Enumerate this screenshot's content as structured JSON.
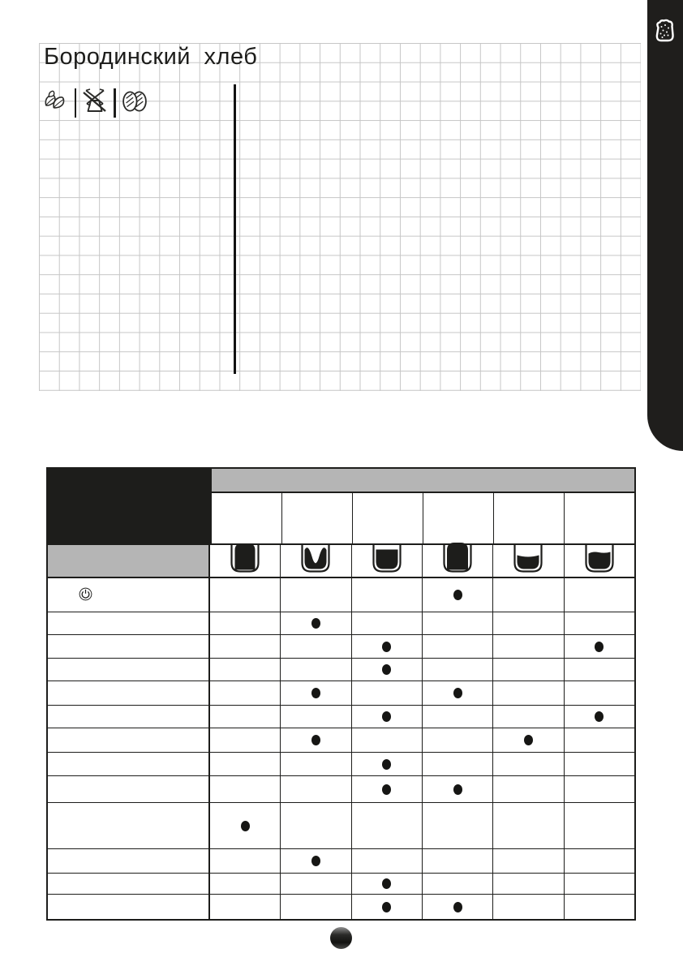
{
  "recipe": {
    "title": "Бородинский хлеб",
    "attribute_icons": [
      "wheat-icon",
      "windmill-crossed-icon",
      "bread-loaves-icon"
    ]
  },
  "side_tab": {
    "icon": "bread-loaf-icon"
  },
  "results_table": {
    "corner_label": "",
    "group_header_label": "",
    "size_header_labels": [
      "",
      "",
      "",
      "",
      "",
      ""
    ],
    "loaf_shape_icons": [
      "pan-overfull",
      "pan-collapsed-center",
      "pan-full-flat-top",
      "pan-overfull-tall",
      "pan-low-concave",
      "pan-medium-wavy"
    ],
    "rows": [
      {
        "label": "",
        "left_icon": "power-icon",
        "dots": [
          4
        ]
      },
      {
        "label": "",
        "dots": [
          2
        ]
      },
      {
        "label": "",
        "dots": [
          3,
          6
        ]
      },
      {
        "label": "",
        "dots": [
          3
        ]
      },
      {
        "label": "",
        "dots": [
          2,
          4
        ]
      },
      {
        "label": "",
        "dots": [
          3,
          6
        ]
      },
      {
        "label": "",
        "dots": [
          2,
          5
        ]
      },
      {
        "label": "",
        "dots": [
          3
        ]
      },
      {
        "label": "",
        "dots": [
          3,
          4
        ]
      },
      {
        "label": "",
        "dots": [
          1
        ]
      },
      {
        "label": "",
        "dots": [
          2
        ]
      },
      {
        "label": "",
        "dots": [
          3
        ]
      },
      {
        "label": "",
        "dots": [
          3,
          4
        ]
      }
    ]
  },
  "page_marker": {
    "label": ""
  },
  "colors": {
    "ink": "#1d1d1b",
    "header_gray": "#b5b5b5",
    "grid_line": "#c6c6c6",
    "tab_black": "#1f1e1c"
  }
}
